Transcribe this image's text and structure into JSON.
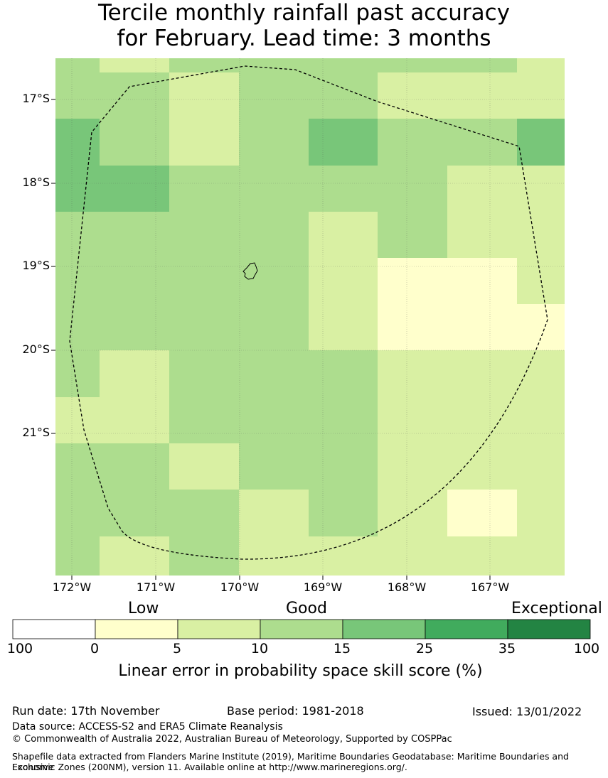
{
  "title_line1": "Tercile monthly rainfall past accuracy",
  "title_line2": "for February. Lead time: 3 months",
  "longitude_labels": [
    "172°W",
    "171°W",
    "170°W",
    "169°W",
    "168°W",
    "167°W"
  ],
  "latitude_labels": [
    "17°S",
    "18°S",
    "19°S",
    "20°S",
    "21°S"
  ],
  "legend": {
    "categories": [
      "Low",
      "Good",
      "Exceptional"
    ],
    "ticks": [
      "100",
      "0",
      "5",
      "10",
      "15",
      "25",
      "35",
      "100"
    ],
    "colors": [
      "#ffffff",
      "#ffffcc",
      "#d9f0a3",
      "#addd8e",
      "#78c679",
      "#41ab5d",
      "#238443"
    ],
    "label": "Linear error in probability space skill score (%)"
  },
  "footer": {
    "run_date": "Run date: 17th November",
    "base_period": "Base period: 1981-2018",
    "issued": "Issued: 13/01/2022",
    "data_source": "Data source: ACCESS-S2 and ERA5 Climate Reanalysis",
    "copyright": "© Commonwealth of Australia 2022, Australian Bureau of Meteorology, Supported by COSPPac",
    "shapefile_line1": "Shapefile data extracted from Flanders Marine Institute (2019), Maritime Boundaries Geodatabase: Maritime Boundaries and Exclusive",
    "shapefile_line2": "Economic Zones (200NM), version 11. Available online at http://www.marineregions.org/."
  }
}
